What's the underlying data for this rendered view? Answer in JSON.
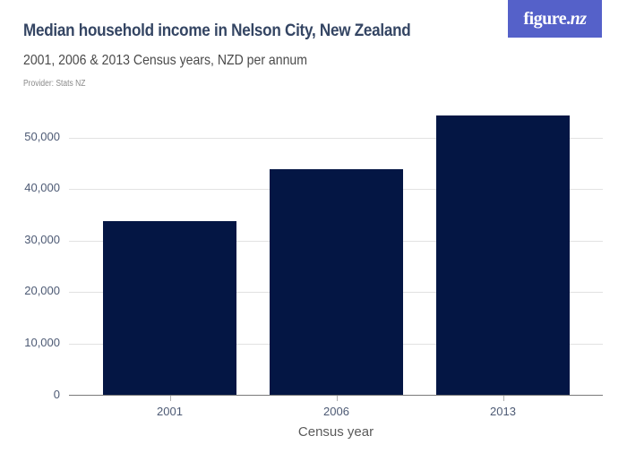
{
  "header": {
    "title": "Median household income in Nelson City, New Zealand",
    "subtitle": "2001, 2006 & 2013 Census years, NZD per annum",
    "provider": "Provider: Stats NZ"
  },
  "logo": {
    "text_main": "figure.",
    "text_nz": "nz",
    "color": "#5561c9"
  },
  "chart_data": {
    "type": "bar",
    "title": "Median household income in Nelson City, New Zealand",
    "subtitle": "2001, 2006 & 2013 Census years, NZD per annum",
    "xlabel": "Census year",
    "ylabel": "",
    "categories": [
      "2001",
      "2006",
      "2013"
    ],
    "values": [
      33700,
      43900,
      54300
    ],
    "ylim": [
      0,
      55000
    ],
    "yticks": [
      0,
      10000,
      20000,
      30000,
      40000,
      50000
    ],
    "ytick_labels": [
      "0",
      "10,000",
      "20,000",
      "30,000",
      "40,000",
      "50,000"
    ],
    "grid": true,
    "legend": "none",
    "bar_color": "#041644"
  }
}
